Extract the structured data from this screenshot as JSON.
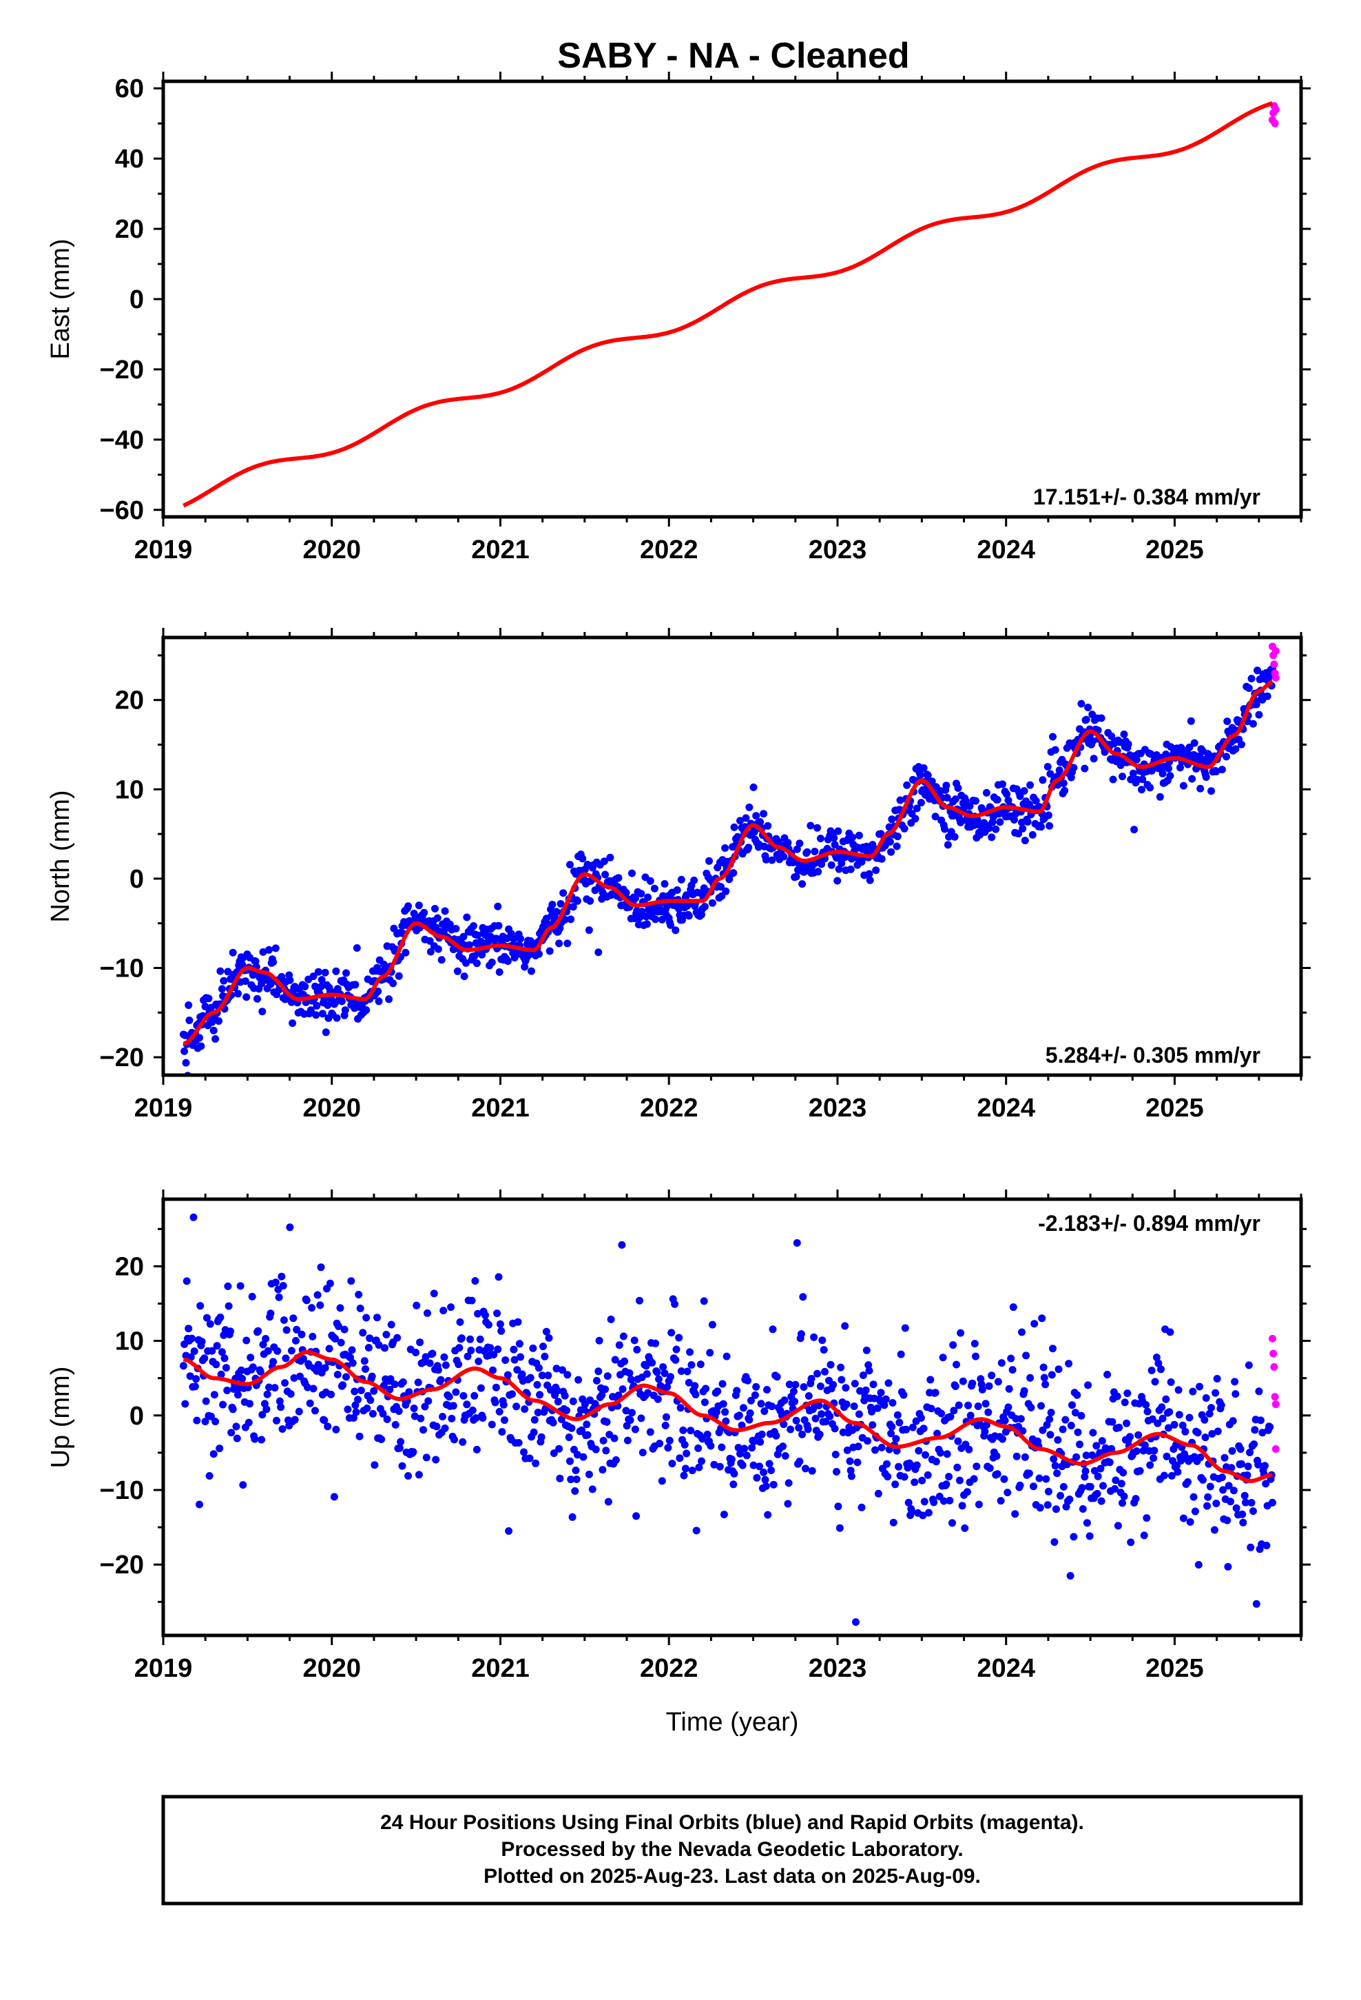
{
  "chart_data": [
    {
      "type": "scatter",
      "title": "SABY  - NA - Cleaned",
      "ylabel": "East (mm)",
      "xlabel": "",
      "xlim": [
        2019.0,
        2025.75
      ],
      "ylim": [
        -62,
        62
      ],
      "xticks": [
        "2019",
        "2020",
        "2021",
        "2022",
        "2023",
        "2024",
        "2025"
      ],
      "yticks": [
        -60,
        -40,
        -20,
        0,
        20,
        40,
        60
      ],
      "yticklabels": [
        "−60",
        "−40",
        "−20",
        "0",
        "20",
        "40",
        "60"
      ],
      "rate_label": "17.151+/- 0.384 mm/yr",
      "grid": false,
      "series": [
        {
          "color": "#0000ff",
          "style": "points",
          "trend": {
            "start": 2019.12,
            "end": 2025.58,
            "intercept": -57,
            "rate": 17.151,
            "seasonal_amp": 2.2,
            "scatter": 1.6
          }
        },
        {
          "color": "#ff00ff",
          "style": "points",
          "x": [
            2025.58,
            2025.585,
            2025.59,
            2025.595,
            2025.6
          ],
          "y": [
            51,
            53,
            55,
            50,
            54
          ]
        },
        {
          "color": "#ff0000",
          "style": "line",
          "fit": {
            "start": 2019.12,
            "end": 2025.58,
            "intercept": -57,
            "rate": 17.151,
            "seasonal_amp": 2.0
          }
        }
      ]
    },
    {
      "type": "scatter",
      "title": "",
      "ylabel": "North (mm)",
      "xlabel": "",
      "xlim": [
        2019.0,
        2025.75
      ],
      "ylim": [
        -22,
        27
      ],
      "xticks": [
        "2019",
        "2020",
        "2021",
        "2022",
        "2023",
        "2024",
        "2025"
      ],
      "yticks": [
        -20,
        -10,
        0,
        10,
        20
      ],
      "yticklabels": [
        "−20",
        "−10",
        "0",
        "10",
        "20"
      ],
      "rate_label": "5.284+/- 0.305 mm/yr",
      "grid": false,
      "series": [
        {
          "color": "#0000ff",
          "style": "points",
          "fit_points": [
            [
              2019.12,
              -18.5
            ],
            [
              2019.3,
              -15
            ],
            [
              2019.5,
              -10
            ],
            [
              2019.6,
              -10.5
            ],
            [
              2019.8,
              -13.5
            ],
            [
              2020.0,
              -13
            ],
            [
              2020.2,
              -13.5
            ],
            [
              2020.3,
              -11
            ],
            [
              2020.5,
              -5
            ],
            [
              2020.65,
              -6.5
            ],
            [
              2020.8,
              -8
            ],
            [
              2021.0,
              -7.5
            ],
            [
              2021.2,
              -8
            ],
            [
              2021.3,
              -5.5
            ],
            [
              2021.5,
              0.5
            ],
            [
              2021.65,
              -1
            ],
            [
              2021.8,
              -3
            ],
            [
              2022.0,
              -2.5
            ],
            [
              2022.2,
              -2.5
            ],
            [
              2022.3,
              0
            ],
            [
              2022.5,
              6
            ],
            [
              2022.65,
              3.5
            ],
            [
              2022.8,
              2
            ],
            [
              2023.0,
              3
            ],
            [
              2023.2,
              2.5
            ],
            [
              2023.3,
              5
            ],
            [
              2023.5,
              11
            ],
            [
              2023.65,
              8
            ],
            [
              2023.8,
              7
            ],
            [
              2024.0,
              8
            ],
            [
              2024.2,
              7.5
            ],
            [
              2024.3,
              11
            ],
            [
              2024.5,
              16.5
            ],
            [
              2024.65,
              14
            ],
            [
              2024.8,
              12.5
            ],
            [
              2025.0,
              13.5
            ],
            [
              2025.2,
              12.5
            ],
            [
              2025.35,
              16
            ],
            [
              2025.5,
              21
            ],
            [
              2025.58,
              22
            ]
          ],
          "scatter": 1.4
        },
        {
          "color": "#ff00ff",
          "style": "points",
          "x": [
            2025.58,
            2025.585,
            2025.59,
            2025.595,
            2025.6,
            2025.6
          ],
          "y": [
            26,
            25,
            24,
            23,
            22.5,
            25.5
          ]
        },
        {
          "color": "#ff0000",
          "style": "line",
          "fit_points": [
            [
              2019.12,
              -18.5
            ],
            [
              2019.3,
              -15
            ],
            [
              2019.5,
              -10
            ],
            [
              2019.6,
              -10.5
            ],
            [
              2019.8,
              -13.5
            ],
            [
              2020.0,
              -13
            ],
            [
              2020.2,
              -13.5
            ],
            [
              2020.3,
              -11
            ],
            [
              2020.5,
              -5
            ],
            [
              2020.65,
              -6.5
            ],
            [
              2020.8,
              -8
            ],
            [
              2021.0,
              -7.5
            ],
            [
              2021.2,
              -8
            ],
            [
              2021.3,
              -5.5
            ],
            [
              2021.5,
              0.5
            ],
            [
              2021.65,
              -1
            ],
            [
              2021.8,
              -3
            ],
            [
              2022.0,
              -2.5
            ],
            [
              2022.2,
              -2.5
            ],
            [
              2022.3,
              0
            ],
            [
              2022.5,
              6
            ],
            [
              2022.65,
              3.5
            ],
            [
              2022.8,
              2
            ],
            [
              2023.0,
              3
            ],
            [
              2023.2,
              2.5
            ],
            [
              2023.3,
              5
            ],
            [
              2023.5,
              11
            ],
            [
              2023.65,
              8
            ],
            [
              2023.8,
              7
            ],
            [
              2024.0,
              8
            ],
            [
              2024.2,
              7.5
            ],
            [
              2024.3,
              11
            ],
            [
              2024.5,
              16.5
            ],
            [
              2024.65,
              14
            ],
            [
              2024.8,
              12.5
            ],
            [
              2025.0,
              13.5
            ],
            [
              2025.2,
              12.5
            ],
            [
              2025.35,
              16
            ],
            [
              2025.5,
              21
            ],
            [
              2025.58,
              22
            ]
          ]
        }
      ]
    },
    {
      "type": "scatter",
      "title": "",
      "ylabel": "Up (mm)",
      "xlabel": "Time (year)",
      "xlim": [
        2019.0,
        2025.75
      ],
      "ylim": [
        -29.5,
        29
      ],
      "xticks": [
        "2019",
        "2020",
        "2021",
        "2022",
        "2023",
        "2024",
        "2025"
      ],
      "yticks": [
        -20,
        -10,
        0,
        10,
        20
      ],
      "yticklabels": [
        "−20",
        "−10",
        "0",
        "10",
        "20"
      ],
      "rate_label": "-2.183+/- 0.894 mm/yr",
      "grid": false,
      "series": [
        {
          "color": "#0000ff",
          "style": "points",
          "fit_points": [
            [
              2019.12,
              7.5
            ],
            [
              2019.3,
              5
            ],
            [
              2019.5,
              4.2
            ],
            [
              2019.7,
              6.5
            ],
            [
              2019.85,
              8.5
            ],
            [
              2020.0,
              7.5
            ],
            [
              2020.2,
              4.5
            ],
            [
              2020.4,
              2.2
            ],
            [
              2020.6,
              3.5
            ],
            [
              2020.85,
              6.3
            ],
            [
              2021.0,
              5
            ],
            [
              2021.2,
              2
            ],
            [
              2021.45,
              -0.5
            ],
            [
              2021.65,
              1.5
            ],
            [
              2021.85,
              4
            ],
            [
              2022.0,
              3
            ],
            [
              2022.2,
              0
            ],
            [
              2022.4,
              -2
            ],
            [
              2022.6,
              -1
            ],
            [
              2022.9,
              2
            ],
            [
              2023.1,
              -1
            ],
            [
              2023.35,
              -4.2
            ],
            [
              2023.6,
              -3
            ],
            [
              2023.85,
              -0.5
            ],
            [
              2024.0,
              -1.5
            ],
            [
              2024.2,
              -4.5
            ],
            [
              2024.45,
              -6.5
            ],
            [
              2024.65,
              -5
            ],
            [
              2024.9,
              -2.5
            ],
            [
              2025.1,
              -4
            ],
            [
              2025.3,
              -7.5
            ],
            [
              2025.45,
              -8.8
            ],
            [
              2025.58,
              -8
            ]
          ],
          "scatter": 5.5
        },
        {
          "color": "#ff00ff",
          "style": "points",
          "x": [
            2025.58,
            2025.585,
            2025.59,
            2025.595,
            2025.6,
            2025.6
          ],
          "y": [
            10.3,
            8.3,
            6.5,
            2.5,
            1.5,
            -4.5
          ]
        },
        {
          "color": "#ff0000",
          "style": "line",
          "fit_points": [
            [
              2019.12,
              7.5
            ],
            [
              2019.3,
              5
            ],
            [
              2019.5,
              4.2
            ],
            [
              2019.7,
              6.5
            ],
            [
              2019.85,
              8.5
            ],
            [
              2020.0,
              7.5
            ],
            [
              2020.2,
              4.5
            ],
            [
              2020.4,
              2.2
            ],
            [
              2020.6,
              3.5
            ],
            [
              2020.85,
              6.3
            ],
            [
              2021.0,
              5
            ],
            [
              2021.2,
              2
            ],
            [
              2021.45,
              -0.5
            ],
            [
              2021.65,
              1.5
            ],
            [
              2021.85,
              4
            ],
            [
              2022.0,
              3
            ],
            [
              2022.2,
              0
            ],
            [
              2022.4,
              -2
            ],
            [
              2022.6,
              -1
            ],
            [
              2022.9,
              2
            ],
            [
              2023.1,
              -1
            ],
            [
              2023.35,
              -4.2
            ],
            [
              2023.6,
              -3
            ],
            [
              2023.85,
              -0.5
            ],
            [
              2024.0,
              -1.5
            ],
            [
              2024.2,
              -4.5
            ],
            [
              2024.45,
              -6.5
            ],
            [
              2024.65,
              -5
            ],
            [
              2024.9,
              -2.5
            ],
            [
              2025.1,
              -4
            ],
            [
              2025.3,
              -7.5
            ],
            [
              2025.45,
              -8.8
            ],
            [
              2025.58,
              -8
            ]
          ]
        }
      ]
    }
  ],
  "footer": {
    "line1": "24 Hour Positions Using Final Orbits (blue) and Rapid Orbits (magenta).",
    "line2": "Processed by the Nevada Geodetic Laboratory.",
    "line3": "Plotted on 2025-Aug-23. Last data on 2025-Aug-09."
  }
}
